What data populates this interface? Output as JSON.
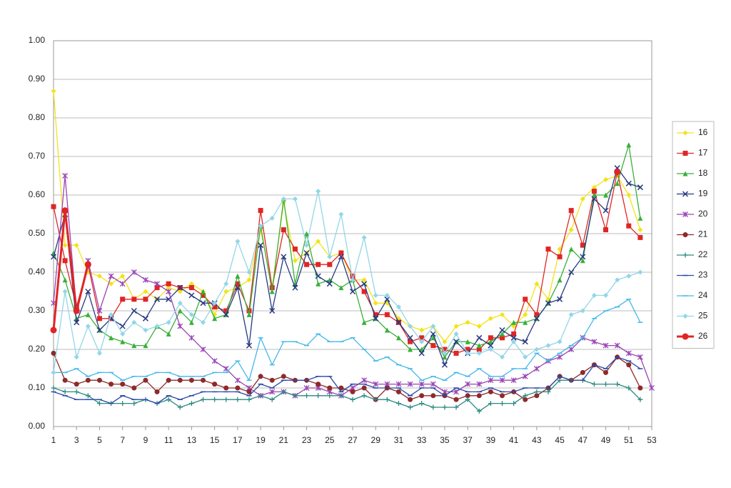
{
  "chart_data": {
    "type": "line",
    "x": [
      1,
      2,
      3,
      4,
      5,
      6,
      7,
      8,
      9,
      10,
      11,
      12,
      13,
      14,
      15,
      16,
      17,
      18,
      19,
      20,
      21,
      22,
      23,
      24,
      25,
      26,
      27,
      28,
      29,
      30,
      31,
      32,
      33,
      34,
      35,
      36,
      37,
      38,
      39,
      40,
      41,
      42,
      43,
      44,
      45,
      46,
      47,
      48,
      49,
      50,
      51,
      52,
      53
    ],
    "xlim": [
      1,
      53
    ],
    "xticks": [
      1,
      3,
      5,
      7,
      9,
      11,
      13,
      15,
      17,
      19,
      21,
      23,
      25,
      27,
      29,
      31,
      33,
      35,
      37,
      39,
      41,
      43,
      45,
      47,
      49,
      51,
      53
    ],
    "ylim": [
      0,
      1
    ],
    "yticks": [
      {
        "value": 0,
        "label": "0.00"
      },
      {
        "value": 0.1,
        "label": "0.10"
      },
      {
        "value": 0.2,
        "label": "0.20"
      },
      {
        "value": 0.3,
        "label": "0.30"
      },
      {
        "value": 0.4,
        "label": "0.40"
      },
      {
        "value": 0.5,
        "label": "0.50"
      },
      {
        "value": 0.6,
        "label": "0.60"
      },
      {
        "value": 0.7,
        "label": "0.70"
      },
      {
        "value": 0.8,
        "label": "0.80"
      },
      {
        "value": 0.9,
        "label": "0.90"
      },
      {
        "value": 1,
        "label": "1.00"
      }
    ],
    "grid": true,
    "legend": "right",
    "series": [
      {
        "name": "16",
        "color": "#f2e31a",
        "marker": "diamond",
        "values": [
          0.87,
          0.47,
          0.47,
          0.4,
          0.39,
          0.37,
          0.39,
          0.33,
          0.35,
          0.33,
          0.36,
          0.35,
          0.37,
          0.35,
          0.29,
          0.35,
          0.36,
          0.38,
          0.51,
          0.36,
          0.58,
          0.43,
          0.45,
          0.48,
          0.44,
          0.45,
          0.38,
          0.38,
          0.32,
          0.32,
          0.28,
          0.26,
          0.25,
          0.26,
          0.22,
          0.26,
          0.27,
          0.26,
          0.28,
          0.29,
          0.26,
          0.29,
          0.37,
          0.33,
          0.46,
          0.51,
          0.59,
          0.62,
          0.64,
          0.65,
          0.6,
          0.51,
          null
        ]
      },
      {
        "name": "17",
        "color": "#e02525",
        "marker": "square",
        "values": [
          0.57,
          0.43,
          0.31,
          0.42,
          0.28,
          0.28,
          0.33,
          0.33,
          0.33,
          0.36,
          0.37,
          0.36,
          0.36,
          0.34,
          0.31,
          0.3,
          0.37,
          0.3,
          0.56,
          0.36,
          0.51,
          0.46,
          0.42,
          0.42,
          0.42,
          0.45,
          0.39,
          0.35,
          0.29,
          0.29,
          0.27,
          0.22,
          0.23,
          0.21,
          0.2,
          0.19,
          0.2,
          0.2,
          0.23,
          0.23,
          0.24,
          0.33,
          0.29,
          0.46,
          0.44,
          0.56,
          0.47,
          0.61,
          0.51,
          0.66,
          0.52,
          0.49,
          null
        ]
      },
      {
        "name": "18",
        "color": "#38b038",
        "marker": "triangle",
        "values": [
          0.45,
          0.38,
          0.28,
          0.29,
          0.25,
          0.23,
          0.22,
          0.21,
          0.21,
          0.26,
          0.24,
          0.3,
          0.27,
          0.35,
          0.28,
          0.29,
          0.39,
          0.29,
          0.52,
          0.35,
          0.59,
          0.37,
          0.5,
          0.37,
          0.38,
          0.36,
          0.38,
          0.27,
          0.28,
          0.25,
          0.23,
          0.2,
          0.2,
          0.23,
          0.18,
          0.22,
          0.22,
          0.21,
          0.22,
          0.24,
          0.27,
          0.27,
          0.28,
          0.32,
          0.38,
          0.46,
          0.43,
          0.6,
          0.6,
          0.63,
          0.73,
          0.54,
          null
        ]
      },
      {
        "name": "19",
        "color": "#263a80",
        "marker": "x",
        "values": [
          0.44,
          0.55,
          0.27,
          0.35,
          0.25,
          0.28,
          0.26,
          0.3,
          0.28,
          0.33,
          0.33,
          0.36,
          0.34,
          0.32,
          0.32,
          0.29,
          0.36,
          0.21,
          0.47,
          0.3,
          0.44,
          0.36,
          0.45,
          0.39,
          0.37,
          0.44,
          0.35,
          0.37,
          0.28,
          0.33,
          0.27,
          0.23,
          0.19,
          0.24,
          0.16,
          0.22,
          0.19,
          0.23,
          0.21,
          0.25,
          0.23,
          0.22,
          0.28,
          0.32,
          0.33,
          0.4,
          0.44,
          0.59,
          0.56,
          0.67,
          0.63,
          0.62,
          null
        ]
      },
      {
        "name": "20",
        "color": "#9a45b5",
        "marker": "star",
        "values": [
          0.32,
          0.65,
          0.3,
          0.43,
          0.3,
          0.39,
          0.37,
          0.4,
          0.38,
          0.37,
          0.35,
          0.26,
          0.23,
          0.2,
          0.17,
          0.15,
          0.12,
          0.1,
          0.08,
          0.09,
          0.09,
          0.08,
          0.1,
          0.1,
          0.09,
          0.08,
          0.1,
          0.12,
          0.11,
          0.11,
          0.11,
          0.11,
          0.11,
          0.11,
          0.09,
          0.09,
          0.11,
          0.11,
          0.12,
          0.12,
          0.12,
          0.13,
          0.15,
          0.17,
          0.18,
          0.2,
          0.23,
          0.22,
          0.21,
          0.21,
          0.19,
          0.18,
          0.1
        ]
      },
      {
        "name": "21",
        "color": "#8e2a2a",
        "marker": "circle",
        "values": [
          0.19,
          0.12,
          0.11,
          0.12,
          0.12,
          0.11,
          0.11,
          0.1,
          0.12,
          0.09,
          0.12,
          0.12,
          0.12,
          0.12,
          0.11,
          0.1,
          0.1,
          0.09,
          0.13,
          0.12,
          0.13,
          0.12,
          0.12,
          0.11,
          0.1,
          0.1,
          0.09,
          0.1,
          0.07,
          0.1,
          0.09,
          0.07,
          0.08,
          0.08,
          0.08,
          0.07,
          0.08,
          0.08,
          0.09,
          0.08,
          0.09,
          0.07,
          0.08,
          0.1,
          0.13,
          0.12,
          0.14,
          0.16,
          0.14,
          0.18,
          0.16,
          0.1,
          null
        ]
      },
      {
        "name": "22",
        "color": "#2a8a80",
        "marker": "plus",
        "values": [
          0.1,
          0.09,
          0.09,
          0.08,
          0.06,
          0.06,
          0.06,
          0.06,
          0.07,
          0.06,
          0.07,
          0.05,
          0.06,
          0.07,
          0.07,
          0.07,
          0.07,
          0.07,
          0.08,
          0.07,
          0.09,
          0.08,
          0.08,
          0.08,
          0.08,
          0.08,
          0.07,
          0.08,
          0.07,
          0.07,
          0.06,
          0.05,
          0.06,
          0.05,
          0.05,
          0.05,
          0.07,
          0.04,
          0.06,
          0.06,
          0.06,
          0.08,
          0.09,
          0.09,
          0.12,
          0.12,
          0.12,
          0.11,
          0.11,
          0.11,
          0.1,
          0.07,
          null
        ]
      },
      {
        "name": "23",
        "color": "#2a48a8",
        "marker": "dash",
        "values": [
          0.09,
          0.08,
          0.07,
          0.07,
          0.07,
          0.06,
          0.08,
          0.07,
          0.07,
          0.06,
          0.08,
          0.07,
          0.08,
          0.09,
          0.09,
          0.09,
          0.09,
          0.08,
          0.11,
          0.1,
          0.12,
          0.12,
          0.12,
          0.13,
          0.13,
          0.09,
          0.11,
          0.11,
          0.1,
          0.1,
          0.1,
          0.08,
          0.1,
          0.1,
          0.08,
          0.1,
          0.09,
          0.09,
          0.1,
          0.09,
          0.09,
          0.1,
          0.1,
          0.1,
          0.13,
          0.12,
          0.12,
          0.16,
          0.15,
          0.18,
          0.17,
          0.15,
          null
        ]
      },
      {
        "name": "24",
        "color": "#45b8ea",
        "marker": "dash",
        "values": [
          0.14,
          0.14,
          0.15,
          0.13,
          0.14,
          0.14,
          0.12,
          0.13,
          0.13,
          0.14,
          0.14,
          0.13,
          0.13,
          0.13,
          0.14,
          0.14,
          0.17,
          0.12,
          0.23,
          0.16,
          0.22,
          0.22,
          0.21,
          0.24,
          0.22,
          0.22,
          0.23,
          0.2,
          0.17,
          0.18,
          0.16,
          0.15,
          0.12,
          0.13,
          0.12,
          0.14,
          0.13,
          0.15,
          0.13,
          0.13,
          0.15,
          0.15,
          0.19,
          0.17,
          0.19,
          0.21,
          0.23,
          0.28,
          0.3,
          0.31,
          0.33,
          0.27,
          null
        ]
      },
      {
        "name": "25",
        "color": "#92d6e8",
        "marker": "diamond",
        "values": [
          0.14,
          0.35,
          0.18,
          0.26,
          0.19,
          0.29,
          0.24,
          0.27,
          0.25,
          0.26,
          0.27,
          0.32,
          0.29,
          0.27,
          0.32,
          0.37,
          0.48,
          0.4,
          0.52,
          0.54,
          0.59,
          0.59,
          0.47,
          0.61,
          0.44,
          0.55,
          0.38,
          0.49,
          0.34,
          0.34,
          0.31,
          0.26,
          0.22,
          0.26,
          0.19,
          0.24,
          0.19,
          0.19,
          0.2,
          0.18,
          0.22,
          0.18,
          0.2,
          0.21,
          0.22,
          0.29,
          0.3,
          0.34,
          0.34,
          0.38,
          0.39,
          0.4,
          null
        ]
      },
      {
        "name": "26",
        "color": "#e02525",
        "marker": "circle",
        "line_width": 3,
        "values": [
          0.25,
          0.56,
          0.3,
          0.42,
          null,
          null,
          null,
          null,
          null,
          null,
          null,
          null,
          null,
          null,
          null,
          null,
          null,
          null,
          null,
          null,
          null,
          null,
          null,
          null,
          null,
          null,
          null,
          null,
          null,
          null,
          null,
          null,
          null,
          null,
          null,
          null,
          null,
          null,
          null,
          null,
          null,
          null,
          null,
          null,
          null,
          null,
          null,
          null,
          null,
          0.66,
          null,
          null,
          null
        ]
      }
    ]
  }
}
